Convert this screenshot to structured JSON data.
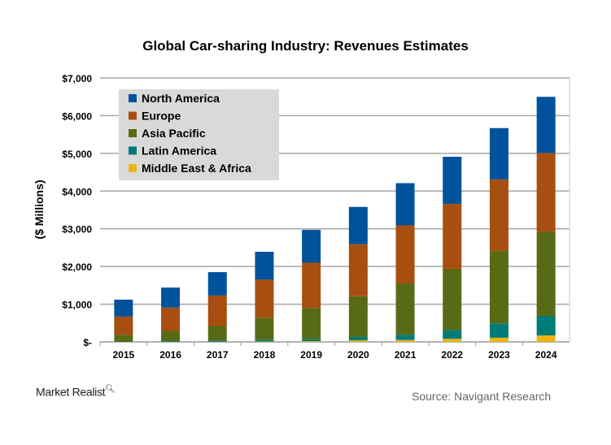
{
  "chart_data": {
    "type": "bar",
    "stacked": true,
    "title": "Global Car-sharing Industry: Revenues Estimates",
    "xlabel": "",
    "ylabel": "($ Millions)",
    "ylim": [
      0,
      7000
    ],
    "yticks": [
      "$-",
      "$1,000",
      "$2,000",
      "$3,000",
      "$4,000",
      "$5,000",
      "$6,000",
      "$7,000"
    ],
    "grid": true,
    "legend_position": "top-left",
    "categories": [
      "2015",
      "2016",
      "2017",
      "2018",
      "2019",
      "2020",
      "2021",
      "2022",
      "2023",
      "2024"
    ],
    "series": [
      {
        "name": "Middle East & Africa",
        "color": "#f0b412",
        "values": [
          0,
          0,
          5,
          10,
          20,
          40,
          50,
          80,
          110,
          170
        ]
      },
      {
        "name": "Latin America",
        "color": "#007c78",
        "values": [
          10,
          20,
          25,
          50,
          60,
          90,
          140,
          230,
          380,
          520
        ]
      },
      {
        "name": "Asia Pacific",
        "color": "#586b14",
        "values": [
          180,
          270,
          390,
          580,
          820,
          1080,
          1360,
          1630,
          1920,
          2230
        ]
      },
      {
        "name": "Europe",
        "color": "#a84e10",
        "values": [
          480,
          620,
          810,
          1010,
          1200,
          1380,
          1540,
          1720,
          1900,
          2090
        ]
      },
      {
        "name": "North America",
        "color": "#00529c",
        "values": [
          450,
          530,
          620,
          740,
          870,
          990,
          1120,
          1250,
          1360,
          1490
        ]
      }
    ],
    "legend_order": [
      "North America",
      "Europe",
      "Asia Pacific",
      "Latin America",
      "Middle East & Africa"
    ]
  },
  "source": "Source: Navigant Research",
  "logo": "Market Realist"
}
